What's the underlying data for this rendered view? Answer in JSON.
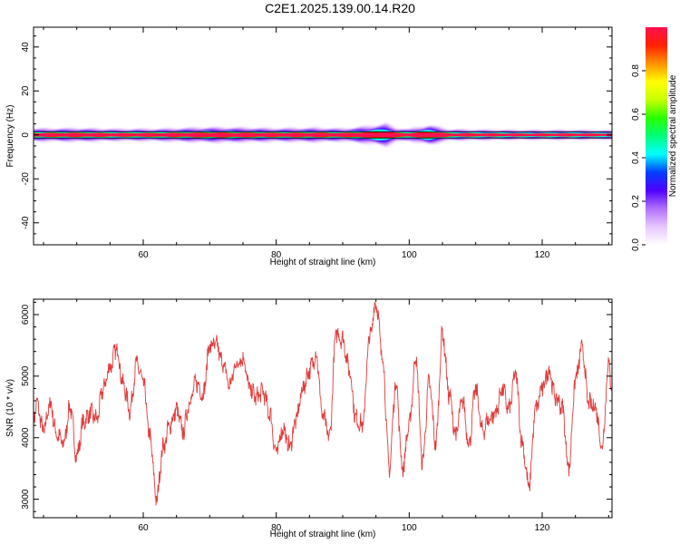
{
  "title": "C2E1.2025.139.00.14.R20",
  "colors": {
    "snr_line": "#e23a3a",
    "spectrum_core": "#ff1050",
    "axis": "#000000"
  },
  "colormap": [
    "#ffffff",
    "#e7c7ff",
    "#b070ff",
    "#4e00ff",
    "#0040ff",
    "#00ffff",
    "#00ff7a",
    "#29ff00",
    "#c8ff00",
    "#ffff00",
    "#ff9000",
    "#ff2000",
    "#ff1050"
  ],
  "chart_data": [
    {
      "type": "heatmap",
      "title": "",
      "xlabel": "Height of straight line (km)",
      "ylabel": "Frequency (Hz)",
      "xlim": [
        43.5,
        130.5
      ],
      "ylim": [
        -50,
        49
      ],
      "x_ticks": [
        60,
        80,
        100,
        120
      ],
      "y_ticks": [
        -40,
        -20,
        0,
        20,
        40
      ],
      "colorbar": {
        "label": "Normalized spectral amplitude",
        "range": [
          0,
          1
        ],
        "ticks": [
          0.0,
          0.2,
          0.4,
          0.6,
          0.8
        ]
      },
      "ridge": {
        "frequency": 0,
        "amplitude": 1.0,
        "spread_hz": [
          [
            44,
            2.8
          ],
          [
            50,
            3.0
          ],
          [
            56,
            2.6
          ],
          [
            62,
            2.7
          ],
          [
            70,
            3.4
          ],
          [
            76,
            3.2
          ],
          [
            80,
            2.9
          ],
          [
            86,
            3.2
          ],
          [
            90,
            2.8
          ],
          [
            94,
            4.0
          ],
          [
            96.5,
            5.2
          ],
          [
            98,
            3.0
          ],
          [
            100,
            2.6
          ],
          [
            103,
            4.5
          ],
          [
            106,
            2.4
          ],
          [
            112,
            2.2
          ],
          [
            118,
            2.0
          ],
          [
            124,
            2.1
          ],
          [
            130,
            1.9
          ]
        ]
      }
    },
    {
      "type": "line",
      "title": "",
      "xlabel": "Height of straight line (km)",
      "ylabel": "SNR (10 * v/v)",
      "xlim": [
        43.5,
        130.5
      ],
      "ylim": [
        2700,
        6250
      ],
      "x_ticks": [
        60,
        80,
        100,
        120
      ],
      "y_ticks": [
        3000,
        4000,
        5000,
        6000
      ],
      "series": [
        {
          "x": [
            43.5,
            44,
            45,
            46,
            47,
            48,
            49,
            50,
            51,
            52,
            53,
            54,
            55,
            56,
            57,
            58,
            59,
            60,
            61,
            62,
            63,
            64,
            65,
            66,
            67,
            68,
            69,
            70,
            71,
            72,
            73,
            74,
            75,
            76,
            77,
            78,
            79,
            80,
            81,
            82,
            83,
            84,
            85,
            86,
            87,
            88,
            89,
            90,
            91,
            92,
            93,
            94,
            95,
            96,
            97,
            98,
            99,
            100,
            101,
            102,
            103,
            104,
            105,
            106,
            107,
            108,
            109,
            110,
            111,
            112,
            113,
            114,
            115,
            116,
            117,
            118,
            119,
            120,
            121,
            122,
            123,
            124,
            125,
            126,
            127,
            128,
            129,
            130,
            130.5
          ],
          "values": [
            4300,
            4550,
            4100,
            4550,
            4050,
            3900,
            4500,
            3700,
            4250,
            4400,
            4300,
            4800,
            5150,
            5450,
            4850,
            4450,
            5200,
            4900,
            4000,
            3000,
            3850,
            4200,
            4450,
            4100,
            4600,
            4900,
            4700,
            5500,
            5500,
            5200,
            4850,
            5200,
            5300,
            4800,
            4650,
            4750,
            4400,
            3750,
            4150,
            3850,
            4300,
            4800,
            5100,
            5350,
            4350,
            4000,
            5700,
            5600,
            5100,
            4300,
            4200,
            5600,
            6200,
            5300,
            3500,
            4900,
            3500,
            4200,
            5300,
            3600,
            4900,
            3900,
            5700,
            4700,
            4050,
            4600,
            3900,
            4800,
            4100,
            4300,
            4400,
            4800,
            4450,
            5050,
            3900,
            3200,
            4450,
            4800,
            5100,
            4650,
            4500,
            3500,
            4950,
            5450,
            4550,
            4500,
            3850,
            5200,
            4800
          ]
        }
      ]
    }
  ]
}
